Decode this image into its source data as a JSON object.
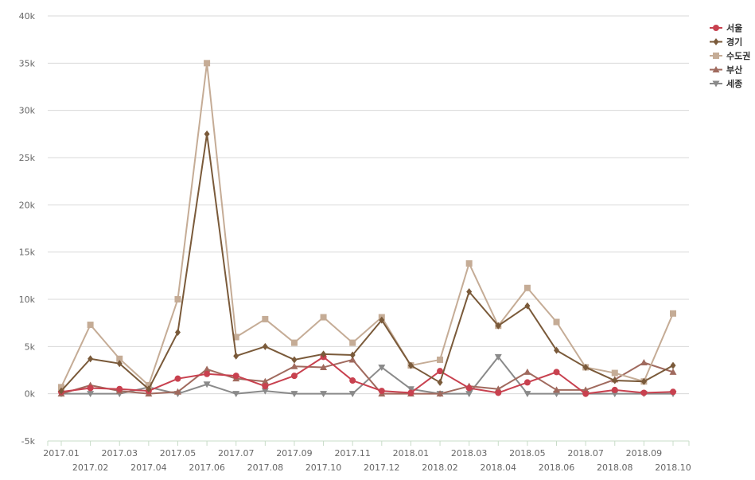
{
  "chart_data": {
    "type": "line",
    "categories": [
      "2017.01",
      "2017.02",
      "2017.03",
      "2017.04",
      "2017.05",
      "2017.06",
      "2017.07",
      "2017.08",
      "2017.09",
      "2017.10",
      "2017.11",
      "2017.12",
      "2018.01",
      "2018.02",
      "2018.03",
      "2018.04",
      "2018.05",
      "2018.06",
      "2018.07",
      "2018.08",
      "2018.09",
      "2018.10"
    ],
    "yticks": [
      "-5k",
      "0k",
      "5k",
      "10k",
      "15k",
      "20k",
      "25k",
      "30k",
      "35k",
      "40k"
    ],
    "ylim": [
      -5000,
      40000
    ],
    "grid": true,
    "legend_position": "top-right",
    "series": [
      {
        "name": "서울",
        "color": "#c8414f",
        "marker": "circle",
        "values": [
          200,
          600,
          500,
          300,
          1600,
          2100,
          1900,
          800,
          1900,
          3900,
          1400,
          300,
          100,
          2400,
          600,
          100,
          1200,
          2300,
          0,
          400,
          100,
          200
        ]
      },
      {
        "name": "경기",
        "color": "#7a5a3a",
        "marker": "diamond",
        "values": [
          300,
          3700,
          3200,
          500,
          6500,
          27500,
          4000,
          5000,
          3600,
          4200,
          4100,
          7800,
          3000,
          1200,
          10800,
          7200,
          9300,
          4600,
          2800,
          1400,
          1300,
          3000
        ]
      },
      {
        "name": "수도권",
        "color": "#c5ac96",
        "marker": "square",
        "values": [
          700,
          7300,
          3700,
          900,
          10000,
          35000,
          6000,
          7900,
          5400,
          8100,
          5400,
          8100,
          3000,
          3600,
          13800,
          7200,
          11200,
          7600,
          2800,
          2200,
          1300,
          8500
        ]
      },
      {
        "name": "부산",
        "color": "#a06a5e",
        "marker": "triangle",
        "values": [
          0,
          900,
          300,
          0,
          200,
          2600,
          1600,
          1300,
          2900,
          2800,
          3600,
          0,
          0,
          0,
          800,
          500,
          2300,
          400,
          400,
          1500,
          3300,
          2300
        ]
      },
      {
        "name": "세종",
        "color": "#8a8a8a",
        "marker": "triangle-down",
        "values": [
          0,
          0,
          0,
          700,
          0,
          1000,
          0,
          300,
          0,
          0,
          0,
          2800,
          500,
          0,
          0,
          3900,
          0,
          0,
          0,
          0,
          0,
          0
        ]
      }
    ]
  }
}
